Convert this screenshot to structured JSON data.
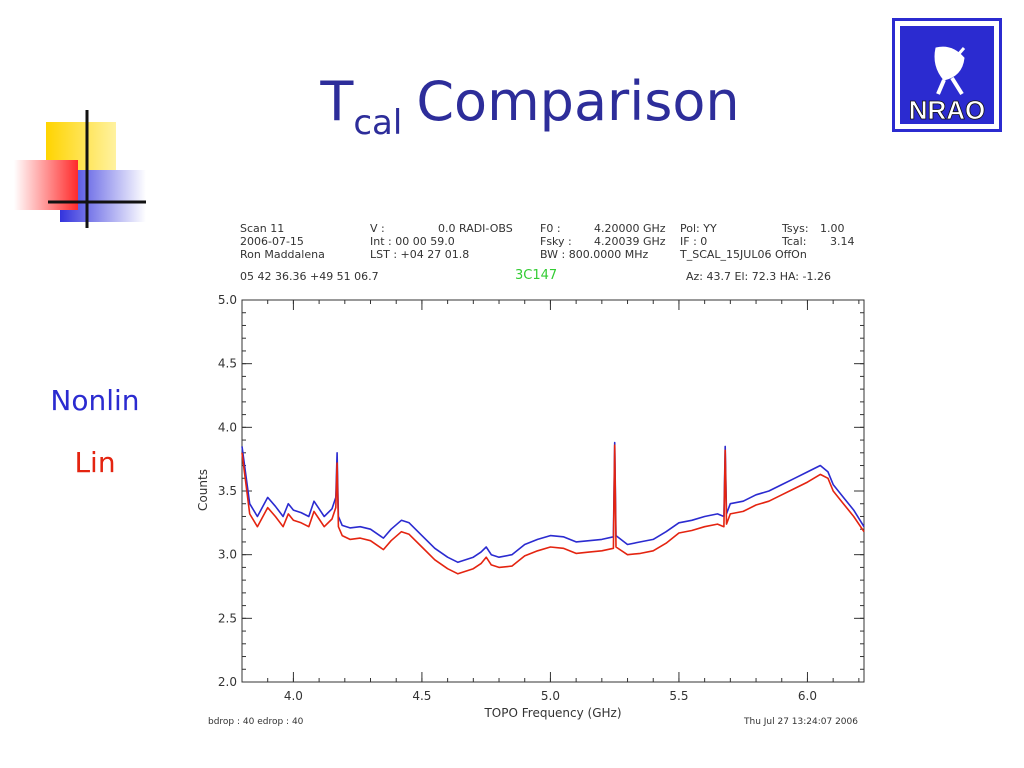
{
  "slide": {
    "title_main": "T",
    "title_sub": "cal",
    "title_rest": "Comparison",
    "legend_nonlin": "Nonlin",
    "legend_lin": "Lin",
    "logo_text": "NRAO",
    "colors": {
      "title": "#2d2d9a",
      "nonlin": "#2b2bd0",
      "lin": "#e42410",
      "logo": "#2b2bd0"
    }
  },
  "plot_header": {
    "col1": [
      "Scan    11",
      "2006-07-15",
      "Ron  Maddalena"
    ],
    "col2": [
      "V    :",
      "Int   :  00 00 59.0",
      "LST : +04 27 01.8"
    ],
    "col2b": [
      "0.0  RADI-OBS",
      "",
      ""
    ],
    "col3": [
      "F0    :",
      "Fsky :",
      "BW    : 800.0000 MHz"
    ],
    "col3b": [
      "4.20000 GHz",
      "4.20039 GHz",
      ""
    ],
    "col4": [
      "Pol:    YY",
      "IF  :      0",
      "T_SCAL_15JUL06  OffOn"
    ],
    "col5": [
      "Tsys:",
      "Tcal:",
      ""
    ],
    "col5b": [
      "1.00",
      "3.14",
      ""
    ],
    "coords": "05 42 36.36   +49 51 06.7",
    "source": "3C147",
    "azel": "Az:  43.7   El:  72.3   HA:  -1.26",
    "footer_left": "bdrop :   40   edrop :   40",
    "footer_right": "Thu Jul 27 13:24:07 2006"
  },
  "chart_data": {
    "type": "line",
    "title": "",
    "xlabel": "TOPO Frequency (GHz)",
    "ylabel": "Counts",
    "xlim": [
      3.8,
      6.22
    ],
    "ylim": [
      2.0,
      5.0
    ],
    "xticks": [
      4.0,
      4.5,
      5.0,
      5.5,
      6.0
    ],
    "xtick_labels": [
      "4.0",
      "4.5",
      "5.0",
      "5.5",
      "6.0"
    ],
    "yticks": [
      2.0,
      2.5,
      3.0,
      3.5,
      4.0,
      4.5,
      5.0
    ],
    "ytick_labels": [
      "2.0",
      "2.5",
      "3.0",
      "3.5",
      "4.0",
      "4.5",
      "5.0"
    ],
    "grid": false,
    "legend": "left",
    "series": [
      {
        "name": "Nonlin",
        "color": "#2b2bd0",
        "x": [
          3.8,
          3.83,
          3.86,
          3.9,
          3.93,
          3.96,
          3.98,
          4.0,
          4.03,
          4.06,
          4.08,
          4.1,
          4.12,
          4.15,
          4.165,
          4.17,
          4.175,
          4.19,
          4.22,
          4.26,
          4.3,
          4.35,
          4.38,
          4.42,
          4.45,
          4.5,
          4.55,
          4.6,
          4.64,
          4.7,
          4.73,
          4.75,
          4.77,
          4.8,
          4.85,
          4.9,
          4.95,
          5.0,
          5.05,
          5.1,
          5.15,
          5.2,
          5.245,
          5.25,
          5.255,
          5.3,
          5.35,
          5.4,
          5.45,
          5.5,
          5.55,
          5.6,
          5.65,
          5.675,
          5.68,
          5.685,
          5.7,
          5.75,
          5.8,
          5.85,
          5.9,
          5.95,
          6.0,
          6.05,
          6.08,
          6.1,
          6.14,
          6.18,
          6.22
        ],
        "y": [
          3.85,
          3.4,
          3.3,
          3.45,
          3.38,
          3.3,
          3.4,
          3.35,
          3.33,
          3.3,
          3.42,
          3.36,
          3.3,
          3.36,
          3.45,
          3.8,
          3.3,
          3.23,
          3.21,
          3.22,
          3.2,
          3.13,
          3.2,
          3.27,
          3.25,
          3.15,
          3.05,
          2.98,
          2.94,
          2.98,
          3.02,
          3.06,
          3.0,
          2.98,
          3.0,
          3.08,
          3.12,
          3.15,
          3.14,
          3.1,
          3.11,
          3.12,
          3.14,
          3.88,
          3.15,
          3.08,
          3.1,
          3.12,
          3.18,
          3.25,
          3.27,
          3.3,
          3.32,
          3.3,
          3.85,
          3.32,
          3.4,
          3.42,
          3.47,
          3.5,
          3.55,
          3.6,
          3.65,
          3.7,
          3.65,
          3.55,
          3.45,
          3.35,
          3.22
        ]
      },
      {
        "name": "Lin",
        "color": "#e42410",
        "x": [
          3.8,
          3.83,
          3.86,
          3.9,
          3.93,
          3.96,
          3.98,
          4.0,
          4.03,
          4.06,
          4.08,
          4.1,
          4.12,
          4.15,
          4.165,
          4.17,
          4.175,
          4.19,
          4.22,
          4.26,
          4.3,
          4.35,
          4.38,
          4.42,
          4.45,
          4.5,
          4.55,
          4.6,
          4.64,
          4.7,
          4.73,
          4.75,
          4.77,
          4.8,
          4.85,
          4.9,
          4.95,
          5.0,
          5.05,
          5.1,
          5.15,
          5.2,
          5.245,
          5.25,
          5.255,
          5.3,
          5.35,
          5.4,
          5.45,
          5.5,
          5.55,
          5.6,
          5.65,
          5.675,
          5.68,
          5.685,
          5.7,
          5.75,
          5.8,
          5.85,
          5.9,
          5.95,
          6.0,
          6.05,
          6.08,
          6.1,
          6.14,
          6.18,
          6.22
        ],
        "y": [
          3.8,
          3.32,
          3.22,
          3.37,
          3.3,
          3.22,
          3.32,
          3.27,
          3.25,
          3.22,
          3.34,
          3.28,
          3.22,
          3.28,
          3.37,
          3.72,
          3.22,
          3.15,
          3.12,
          3.13,
          3.11,
          3.04,
          3.11,
          3.18,
          3.16,
          3.06,
          2.96,
          2.89,
          2.85,
          2.89,
          2.93,
          2.98,
          2.92,
          2.9,
          2.91,
          2.99,
          3.03,
          3.06,
          3.05,
          3.01,
          3.02,
          3.03,
          3.05,
          3.86,
          3.06,
          3.0,
          3.01,
          3.03,
          3.09,
          3.17,
          3.19,
          3.22,
          3.24,
          3.22,
          3.82,
          3.24,
          3.32,
          3.34,
          3.39,
          3.42,
          3.47,
          3.52,
          3.57,
          3.63,
          3.6,
          3.5,
          3.4,
          3.3,
          3.18
        ]
      }
    ]
  }
}
